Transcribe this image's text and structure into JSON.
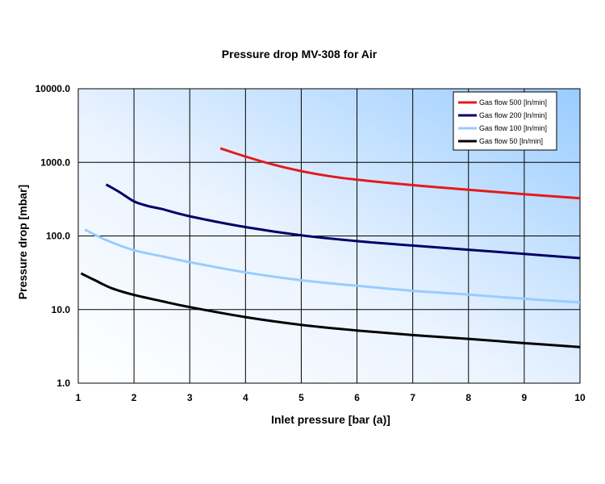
{
  "chart_data": {
    "type": "line",
    "title": "Pressure drop MV-308 for Air",
    "xlabel": "Inlet pressure [bar (a)]",
    "ylabel": "Pressure drop [mbar]",
    "xlim": [
      1,
      10
    ],
    "ylim": [
      1,
      10000
    ],
    "yscale": "log",
    "grid": true,
    "legend_position": "top-right",
    "x_ticks": [
      "1",
      "2",
      "3",
      "4",
      "5",
      "6",
      "7",
      "8",
      "9",
      "10"
    ],
    "y_ticks": [
      "1.0",
      "10.0",
      "100.0",
      "1000.0",
      "10000.0"
    ],
    "series": [
      {
        "name": "Gas flow 500  [ln/min]",
        "color": "#e31a1c",
        "x": [
          3.55,
          4.0,
          4.5,
          5.0,
          5.5,
          6.0,
          7.0,
          8.0,
          9.0,
          10.0
        ],
        "y": [
          1550,
          1200,
          930,
          760,
          650,
          580,
          490,
          425,
          370,
          325
        ]
      },
      {
        "name": "Gas flow 200  [ln/min]",
        "color": "#000066",
        "x": [
          1.5,
          1.75,
          2.0,
          2.25,
          2.5,
          3.0,
          4.0,
          5.0,
          6.0,
          7.0,
          8.0,
          9.0,
          10.0
        ],
        "y": [
          500,
          390,
          295,
          255,
          232,
          185,
          132,
          102,
          85,
          74,
          65,
          57,
          50
        ]
      },
      {
        "name": "Gas flow 100  [ln/min]",
        "color": "#99ccff",
        "x": [
          1.12,
          1.5,
          2.0,
          2.5,
          3.0,
          4.0,
          5.0,
          6.0,
          7.0,
          8.0,
          9.0,
          10.0
        ],
        "y": [
          122,
          88,
          64,
          53,
          44,
          32,
          25,
          21,
          18,
          16,
          14,
          12.5
        ]
      },
      {
        "name": "Gas flow 50  [ln/min]",
        "color": "#000000",
        "x": [
          1.05,
          1.3,
          1.6,
          2.0,
          2.5,
          3.0,
          4.0,
          5.0,
          6.0,
          7.0,
          8.0,
          9.0,
          10.0
        ],
        "y": [
          31,
          25,
          19.5,
          15.8,
          13,
          10.8,
          7.9,
          6.2,
          5.2,
          4.5,
          4.0,
          3.5,
          3.1
        ]
      }
    ]
  }
}
